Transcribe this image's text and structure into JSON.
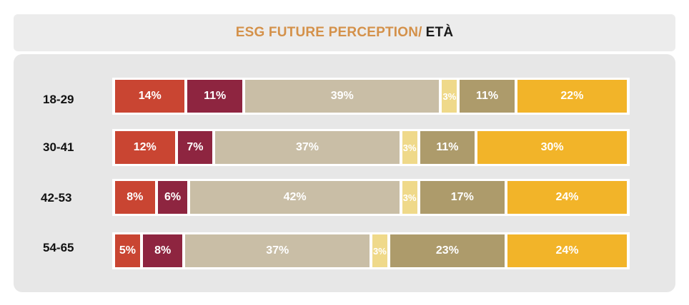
{
  "header": {
    "title": "ESG FUTURE PERCEPTION/",
    "title_suffix": "ETÀ"
  },
  "chart_data": {
    "type": "bar",
    "orientation": "horizontal",
    "stacked": true,
    "normalized": true,
    "title": "ESG FUTURE PERCEPTION/ ETÀ",
    "categories": [
      "18-29",
      "30-41",
      "42-53",
      "54-65"
    ],
    "series": [
      {
        "name": "segment 1",
        "color": "#c94532",
        "values": [
          14,
          12,
          8,
          5
        ]
      },
      {
        "name": "segment 2",
        "color": "#8e2540",
        "values": [
          11,
          7,
          6,
          8
        ]
      },
      {
        "name": "segment 3",
        "color": "#c9bea6",
        "values": [
          39,
          37,
          42,
          37
        ]
      },
      {
        "name": "segment 4",
        "color": "#efd98a",
        "values": [
          3,
          3,
          3,
          3
        ]
      },
      {
        "name": "segment 5",
        "color": "#ad9b6b",
        "values": [
          11,
          11,
          17,
          23
        ]
      },
      {
        "name": "segment 6",
        "color": "#f2b429",
        "values": [
          22,
          30,
          24,
          24
        ]
      }
    ],
    "value_suffix": "%",
    "legend": "none"
  }
}
